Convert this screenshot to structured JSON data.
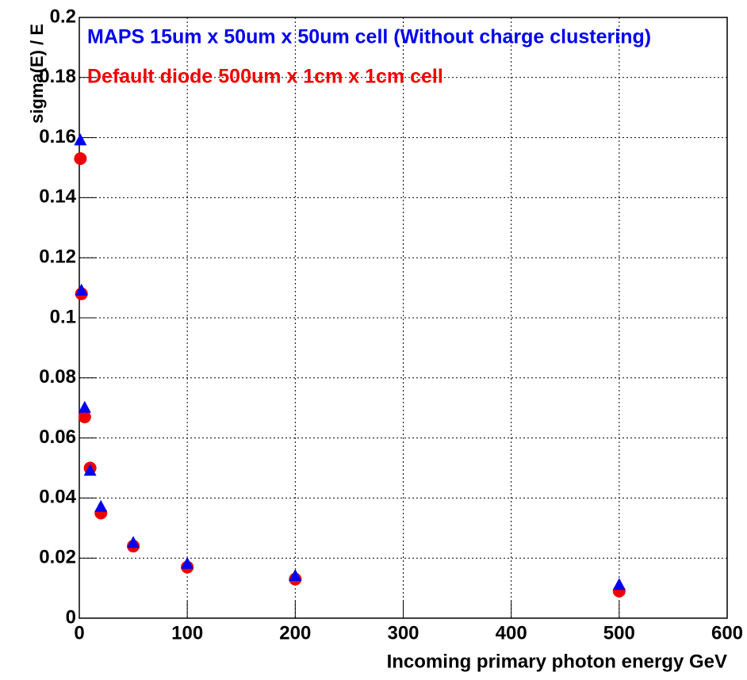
{
  "chart_data": {
    "type": "scatter",
    "x_label": "Incoming primary photon energy   GeV",
    "y_label": "sigma(E) / E",
    "series": [
      {
        "name": "MAPS 15um x 50um x 50um cell (Without charge clustering)",
        "color": "#0000ee",
        "marker": "triangle",
        "x": [
          1,
          2,
          5,
          10,
          20,
          50,
          100,
          200,
          500
        ],
        "values": [
          0.159,
          0.109,
          0.07,
          0.049,
          0.037,
          0.025,
          0.018,
          0.014,
          0.011
        ]
      },
      {
        "name": "Default diode 500um x 1cm x 1cm cell",
        "color": "#ee0000",
        "marker": "circle",
        "x": [
          1,
          2,
          5,
          10,
          20,
          50,
          100,
          200,
          500
        ],
        "values": [
          0.153,
          0.108,
          0.067,
          0.05,
          0.035,
          0.024,
          0.017,
          0.013,
          0.009
        ]
      }
    ],
    "xlim": [
      0,
      600
    ],
    "xticks": [
      0,
      100,
      200,
      300,
      400,
      500,
      600
    ],
    "ylim": [
      0,
      0.2
    ],
    "yticks": [
      0,
      0.02,
      0.04,
      0.06,
      0.08,
      0.1,
      0.12,
      0.14,
      0.16,
      0.18,
      0.2
    ],
    "grid": true
  }
}
